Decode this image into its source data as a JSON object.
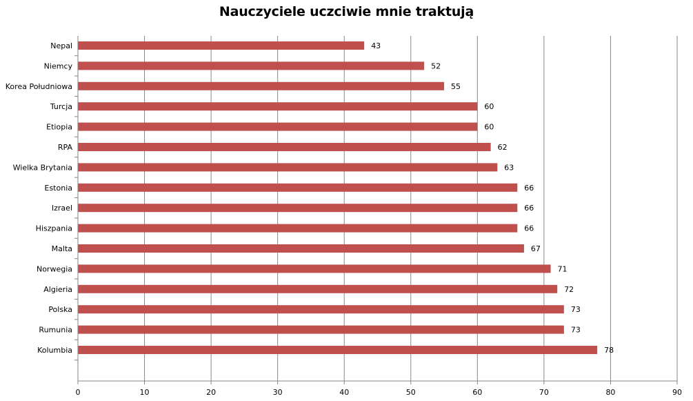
{
  "chart_data": {
    "type": "bar",
    "orientation": "horizontal",
    "title": "Nauczyciele uczciwie mnie traktują",
    "xlabel": "",
    "ylabel": "",
    "xlim": [
      0,
      90
    ],
    "xticks": [
      0,
      10,
      20,
      30,
      40,
      50,
      60,
      70,
      80,
      90
    ],
    "grid": true,
    "legend": "none",
    "bar_color": "#c0504d",
    "categories": [
      "Nepal",
      "Niemcy",
      "Korea Południowa",
      "Turcja",
      "Etiopia",
      "RPA",
      "Wielka Brytania",
      "Estonia",
      "Izrael",
      "Hiszpania",
      "Malta",
      "Norwegia",
      "Algieria",
      "Polska",
      "Rumunia",
      "Kolumbia"
    ],
    "values": [
      43,
      52,
      55,
      60,
      60,
      62,
      63,
      66,
      66,
      66,
      67,
      71,
      72,
      73,
      73,
      78
    ]
  }
}
